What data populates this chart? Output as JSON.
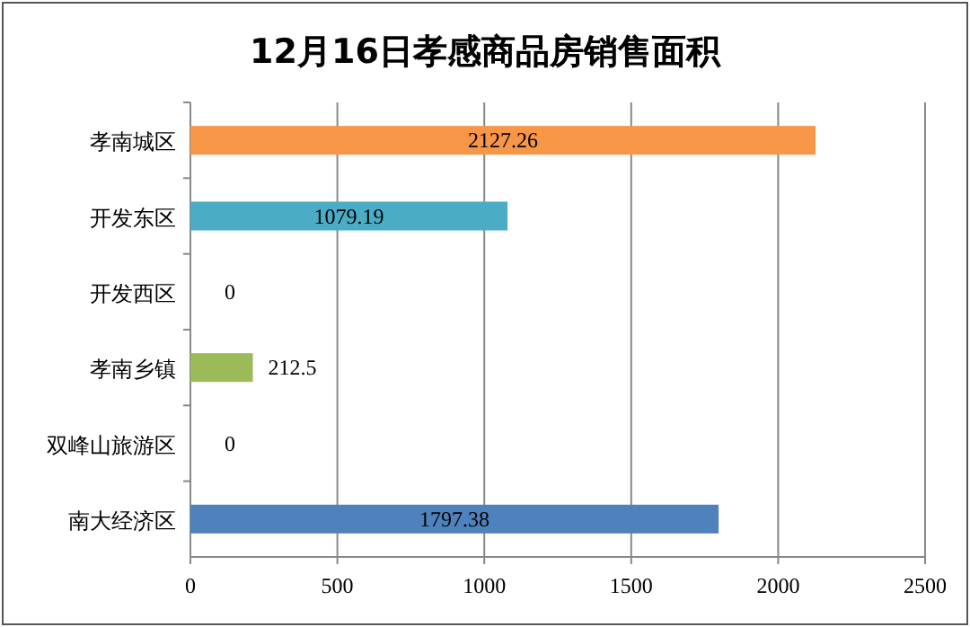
{
  "chart_data": {
    "type": "bar",
    "orientation": "horizontal",
    "title": "12月16日孝感商品房销售面积",
    "categories": [
      "孝南城区",
      "开发东区",
      "开发西区",
      "孝南乡镇",
      "双峰山旅游区",
      "南大经济区"
    ],
    "values": [
      2127.26,
      1079.19,
      0,
      212.5,
      0,
      1797.38
    ],
    "colors": [
      "#f79646",
      "#4bacc6",
      "#8064a2",
      "#9bbb59",
      "#c0504d",
      "#4f81bd"
    ],
    "xlim": [
      0,
      2500
    ],
    "xticks": [
      0,
      500,
      1000,
      1500,
      2000,
      2500
    ],
    "grid": "x",
    "data_labels": true
  }
}
